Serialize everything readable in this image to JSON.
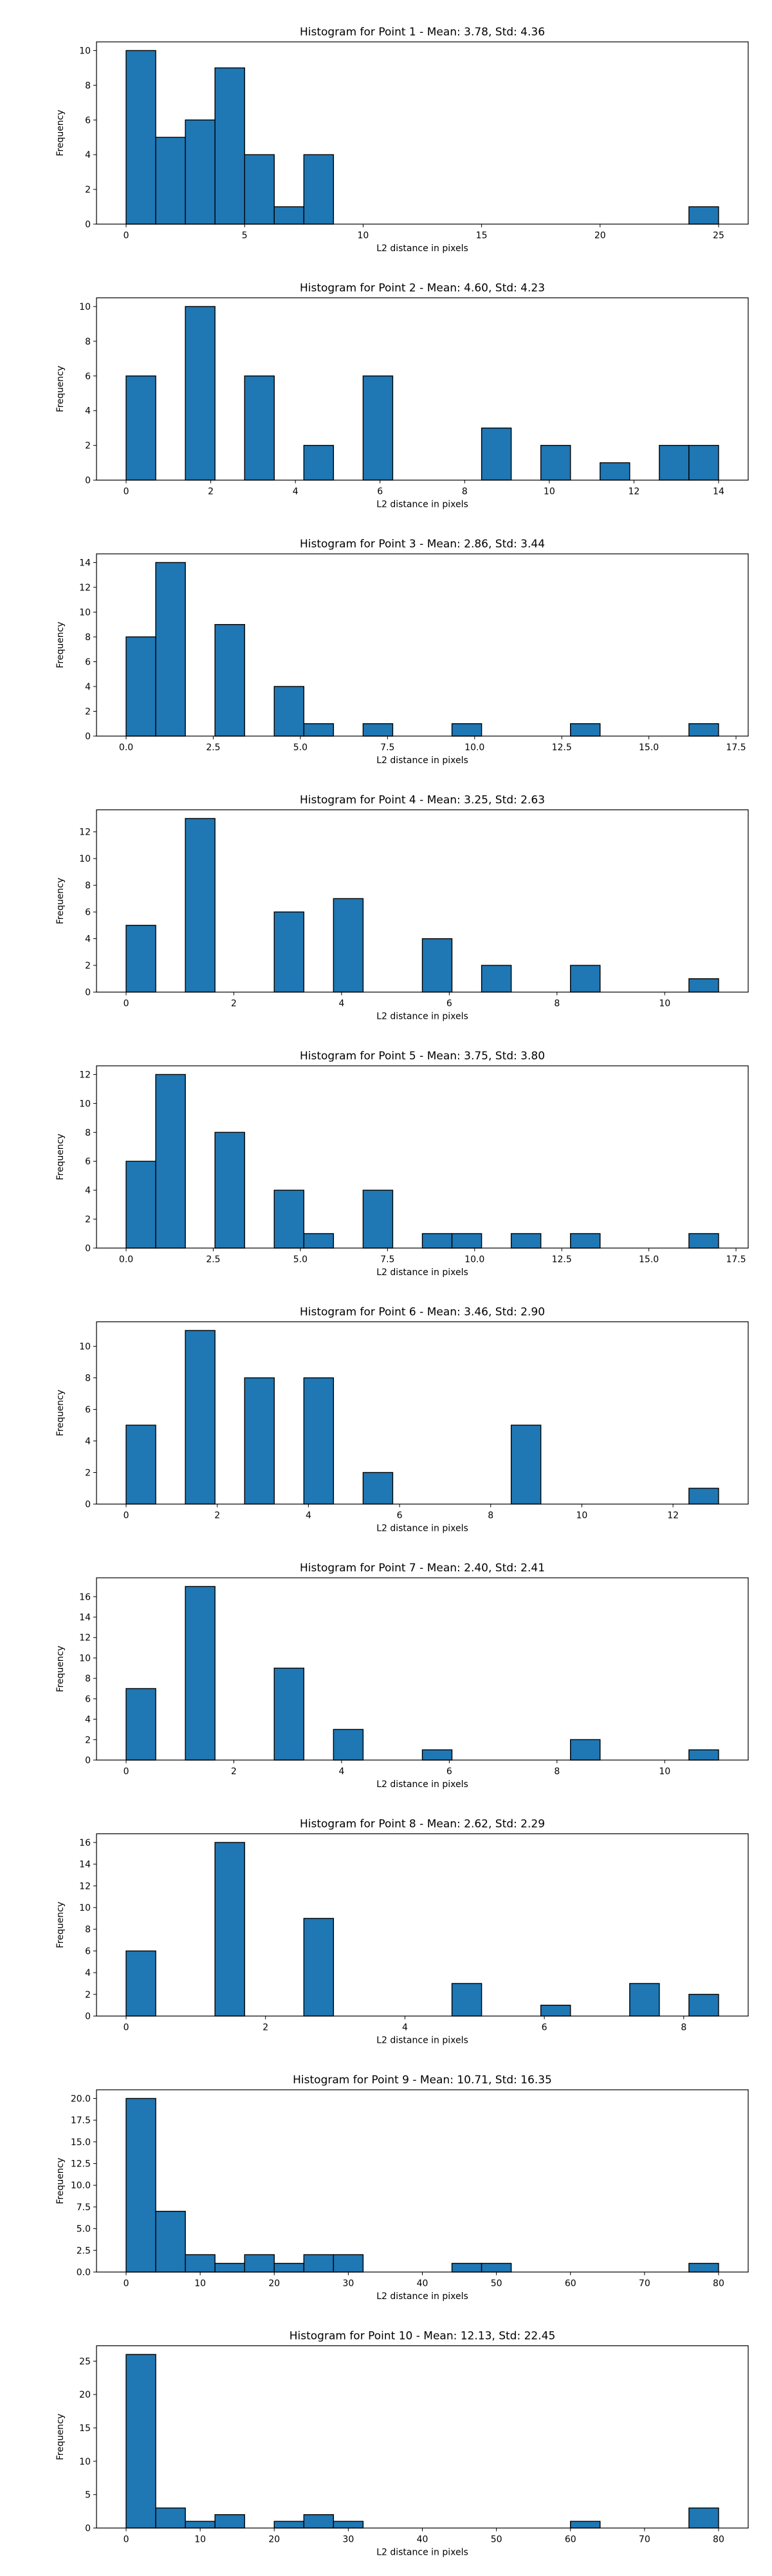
{
  "chart_data": [
    {
      "type": "bar",
      "title": "Histogram for Point 1 - Mean: 3.78, Std: 4.36",
      "xlabel": "L2 distance in pixels",
      "ylabel": "Frequency",
      "xlim": [
        -1.25,
        26.25
      ],
      "ylim": [
        0,
        10.5
      ],
      "xticks": [
        0,
        5,
        10,
        15,
        20,
        25
      ],
      "xtick_labels": [
        "0",
        "5",
        "10",
        "15",
        "20",
        "25"
      ],
      "yticks": [
        0,
        2,
        4,
        6,
        8,
        10
      ],
      "ytick_labels": [
        "0",
        "2",
        "4",
        "6",
        "8",
        "10"
      ],
      "bin_start": 0,
      "bin_end": 25,
      "values": [
        10,
        5,
        6,
        9,
        4,
        1,
        4,
        0,
        0,
        0,
        0,
        0,
        0,
        0,
        0,
        0,
        0,
        0,
        0,
        1
      ],
      "bar_color": "#1f77b4",
      "edge_color": "#000000"
    },
    {
      "type": "bar",
      "title": "Histogram for Point 2 - Mean: 4.60, Std: 4.23",
      "xlabel": "L2 distance in pixels",
      "ylabel": "Frequency",
      "xlim": [
        -0.7,
        14.7
      ],
      "ylim": [
        0,
        10.5
      ],
      "xticks": [
        0,
        2,
        4,
        6,
        8,
        10,
        12,
        14
      ],
      "xtick_labels": [
        "0",
        "2",
        "4",
        "6",
        "8",
        "10",
        "12",
        "14"
      ],
      "yticks": [
        0,
        2,
        4,
        6,
        8,
        10
      ],
      "ytick_labels": [
        "0",
        "2",
        "4",
        "6",
        "8",
        "10"
      ],
      "bin_start": 0,
      "bin_end": 14,
      "values": [
        6,
        0,
        10,
        0,
        6,
        0,
        2,
        0,
        6,
        0,
        0,
        0,
        3,
        0,
        2,
        0,
        1,
        0,
        2,
        2
      ],
      "bar_color": "#1f77b4",
      "edge_color": "#000000"
    },
    {
      "type": "bar",
      "title": "Histogram for Point 3 - Mean: 2.86, Std: 3.44",
      "xlabel": "L2 distance in pixels",
      "ylabel": "Frequency",
      "xlim": [
        -0.85,
        17.85
      ],
      "ylim": [
        0,
        14.7
      ],
      "xticks": [
        0,
        2.5,
        5,
        7.5,
        10,
        12.5,
        15,
        17.5
      ],
      "xtick_labels": [
        "0.0",
        "2.5",
        "5.0",
        "7.5",
        "10.0",
        "12.5",
        "15.0",
        "17.5"
      ],
      "yticks": [
        0,
        2,
        4,
        6,
        8,
        10,
        12,
        14
      ],
      "ytick_labels": [
        "0",
        "2",
        "4",
        "6",
        "8",
        "10",
        "12",
        "14"
      ],
      "bin_start": 0,
      "bin_end": 17,
      "values": [
        8,
        14,
        0,
        9,
        0,
        4,
        1,
        0,
        1,
        0,
        0,
        1,
        0,
        0,
        0,
        1,
        0,
        0,
        0,
        1
      ],
      "bar_color": "#1f77b4",
      "edge_color": "#000000"
    },
    {
      "type": "bar",
      "title": "Histogram for Point 4 - Mean: 3.25, Std: 2.63",
      "xlabel": "L2 distance in pixels",
      "ylabel": "Frequency",
      "xlim": [
        -0.55,
        11.55
      ],
      "ylim": [
        0,
        13.65
      ],
      "xticks": [
        0,
        2,
        4,
        6,
        8,
        10
      ],
      "xtick_labels": [
        "0",
        "2",
        "4",
        "6",
        "8",
        "10"
      ],
      "yticks": [
        0,
        2,
        4,
        6,
        8,
        10,
        12
      ],
      "ytick_labels": [
        "0",
        "2",
        "4",
        "6",
        "8",
        "10",
        "12"
      ],
      "bin_start": 0,
      "bin_end": 11,
      "values": [
        5,
        0,
        13,
        0,
        0,
        6,
        0,
        7,
        0,
        0,
        4,
        0,
        2,
        0,
        0,
        2,
        0,
        0,
        0,
        1
      ],
      "bar_color": "#1f77b4",
      "edge_color": "#000000"
    },
    {
      "type": "bar",
      "title": "Histogram for Point 5 - Mean: 3.75, Std: 3.80",
      "xlabel": "L2 distance in pixels",
      "ylabel": "Frequency",
      "xlim": [
        -0.85,
        17.85
      ],
      "ylim": [
        0,
        12.6
      ],
      "xticks": [
        0,
        2.5,
        5,
        7.5,
        10,
        12.5,
        15,
        17.5
      ],
      "xtick_labels": [
        "0.0",
        "2.5",
        "5.0",
        "7.5",
        "10.0",
        "12.5",
        "15.0",
        "17.5"
      ],
      "yticks": [
        0,
        2,
        4,
        6,
        8,
        10,
        12
      ],
      "ytick_labels": [
        "0",
        "2",
        "4",
        "6",
        "8",
        "10",
        "12"
      ],
      "bin_start": 0,
      "bin_end": 17,
      "values": [
        6,
        12,
        0,
        8,
        0,
        4,
        1,
        0,
        4,
        0,
        1,
        1,
        0,
        1,
        0,
        1,
        0,
        0,
        0,
        1
      ],
      "bar_color": "#1f77b4",
      "edge_color": "#000000"
    },
    {
      "type": "bar",
      "title": "Histogram for Point 6 - Mean: 3.46, Std: 2.90",
      "xlabel": "L2 distance in pixels",
      "ylabel": "Frequency",
      "xlim": [
        -0.65,
        13.65
      ],
      "ylim": [
        0,
        11.55
      ],
      "xticks": [
        0,
        2,
        4,
        6,
        8,
        10,
        12
      ],
      "xtick_labels": [
        "0",
        "2",
        "4",
        "6",
        "8",
        "10",
        "12"
      ],
      "yticks": [
        0,
        2,
        4,
        6,
        8,
        10
      ],
      "ytick_labels": [
        "0",
        "2",
        "4",
        "6",
        "8",
        "10"
      ],
      "bin_start": 0,
      "bin_end": 13,
      "values": [
        5,
        0,
        11,
        0,
        8,
        0,
        8,
        0,
        2,
        0,
        0,
        0,
        0,
        5,
        0,
        0,
        0,
        0,
        0,
        1
      ],
      "bar_color": "#1f77b4",
      "edge_color": "#000000"
    },
    {
      "type": "bar",
      "title": "Histogram for Point 7 - Mean: 2.40, Std: 2.41",
      "xlabel": "L2 distance in pixels",
      "ylabel": "Frequency",
      "xlim": [
        -0.55,
        11.55
      ],
      "ylim": [
        0,
        17.85
      ],
      "xticks": [
        0,
        2,
        4,
        6,
        8,
        10
      ],
      "xtick_labels": [
        "0",
        "2",
        "4",
        "6",
        "8",
        "10"
      ],
      "yticks": [
        0,
        2,
        4,
        6,
        8,
        10,
        12,
        14,
        16
      ],
      "ytick_labels": [
        "0",
        "2",
        "4",
        "6",
        "8",
        "10",
        "12",
        "14",
        "16"
      ],
      "bin_start": 0,
      "bin_end": 11,
      "values": [
        7,
        0,
        17,
        0,
        0,
        9,
        0,
        3,
        0,
        0,
        1,
        0,
        0,
        0,
        0,
        2,
        0,
        0,
        0,
        1
      ],
      "bar_color": "#1f77b4",
      "edge_color": "#000000"
    },
    {
      "type": "bar",
      "title": "Histogram for Point 8 - Mean: 2.62, Std: 2.29",
      "xlabel": "L2 distance in pixels",
      "ylabel": "Frequency",
      "xlim": [
        -0.425,
        8.925
      ],
      "ylim": [
        0,
        16.8
      ],
      "xticks": [
        0,
        2,
        4,
        6,
        8
      ],
      "xtick_labels": [
        "0",
        "2",
        "4",
        "6",
        "8"
      ],
      "yticks": [
        0,
        2,
        4,
        6,
        8,
        10,
        12,
        14,
        16
      ],
      "ytick_labels": [
        "0",
        "2",
        "4",
        "6",
        "8",
        "10",
        "12",
        "14",
        "16"
      ],
      "bin_start": 0,
      "bin_end": 8.5,
      "values": [
        6,
        0,
        0,
        16,
        0,
        0,
        9,
        0,
        0,
        0,
        0,
        3,
        0,
        0,
        1,
        0,
        0,
        3,
        0,
        2
      ],
      "bar_color": "#1f77b4",
      "edge_color": "#000000"
    },
    {
      "type": "bar",
      "title": "Histogram for Point 9 - Mean: 10.71, Std: 16.35",
      "xlabel": "L2 distance in pixels",
      "ylabel": "Frequency",
      "xlim": [
        -4,
        84
      ],
      "ylim": [
        0,
        21
      ],
      "xticks": [
        0,
        10,
        20,
        30,
        40,
        50,
        60,
        70,
        80
      ],
      "xtick_labels": [
        "0",
        "10",
        "20",
        "30",
        "40",
        "50",
        "60",
        "70",
        "80"
      ],
      "yticks": [
        0,
        2.5,
        5,
        7.5,
        10,
        12.5,
        15,
        17.5,
        20
      ],
      "ytick_labels": [
        "0.0",
        "2.5",
        "5.0",
        "7.5",
        "10.0",
        "12.5",
        "15.0",
        "17.5",
        "20.0"
      ],
      "bin_start": 0,
      "bin_end": 80,
      "values": [
        20,
        7,
        2,
        1,
        2,
        1,
        2,
        2,
        0,
        0,
        0,
        1,
        1,
        0,
        0,
        0,
        0,
        0,
        0,
        1
      ],
      "bar_color": "#1f77b4",
      "edge_color": "#000000"
    },
    {
      "type": "bar",
      "title": "Histogram for Point 10 - Mean: 12.13, Std: 22.45",
      "xlabel": "L2 distance in pixels",
      "ylabel": "Frequency",
      "xlim": [
        -4,
        84
      ],
      "ylim": [
        0,
        27.3
      ],
      "xticks": [
        0,
        10,
        20,
        30,
        40,
        50,
        60,
        70,
        80
      ],
      "xtick_labels": [
        "0",
        "10",
        "20",
        "30",
        "40",
        "50",
        "60",
        "70",
        "80"
      ],
      "yticks": [
        0,
        5,
        10,
        15,
        20,
        25
      ],
      "ytick_labels": [
        "0",
        "5",
        "10",
        "15",
        "20",
        "25"
      ],
      "bin_start": 0,
      "bin_end": 80,
      "values": [
        26,
        3,
        1,
        2,
        0,
        1,
        2,
        1,
        0,
        0,
        0,
        0,
        0,
        0,
        0,
        1,
        0,
        0,
        0,
        3
      ],
      "bar_color": "#1f77b4",
      "edge_color": "#000000"
    }
  ]
}
